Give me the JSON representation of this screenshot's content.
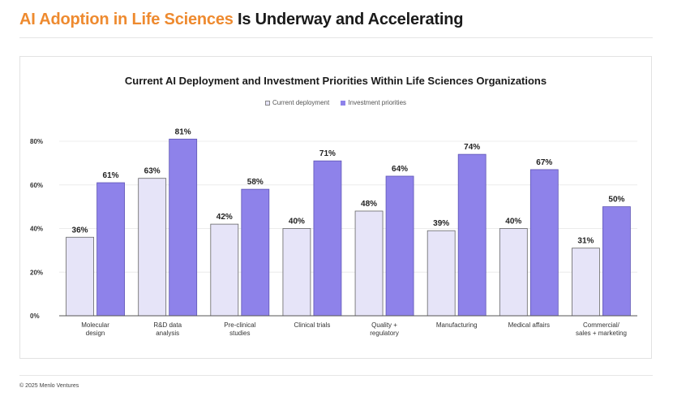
{
  "page": {
    "headline_accent": "AI Adoption in Life Sciences",
    "headline_rest": " Is Underway and Accelerating",
    "footer": "© 2025 Menlo Ventures"
  },
  "colors": {
    "accent": "#ee8a2f",
    "current_fill": "#e6e4f8",
    "investment_fill": "#8e82ea"
  },
  "chart_data": {
    "type": "bar",
    "title": "Current AI Deployment and Investment Priorities Within Life Sciences Organizations",
    "legend": [
      "Current deployment",
      "Investment priorities"
    ],
    "categories": [
      [
        "Molecular",
        "design"
      ],
      [
        "R&D data",
        "analysis"
      ],
      [
        "Pre-clinical",
        "studies"
      ],
      [
        "Clinical trials"
      ],
      [
        "Quality +",
        "regulatory"
      ],
      [
        "Manufacturing"
      ],
      [
        "Medical affairs"
      ],
      [
        "Commercial/",
        "sales + marketing"
      ]
    ],
    "series": [
      {
        "name": "Current deployment",
        "values": [
          36,
          63,
          42,
          40,
          48,
          39,
          40,
          31
        ]
      },
      {
        "name": "Investment priorities",
        "values": [
          61,
          81,
          58,
          71,
          64,
          74,
          67,
          50
        ]
      }
    ],
    "yticks": [
      0,
      20,
      40,
      60,
      80
    ],
    "ylim": [
      0,
      80
    ],
    "value_suffix": "%",
    "xlabel": "",
    "ylabel": ""
  }
}
